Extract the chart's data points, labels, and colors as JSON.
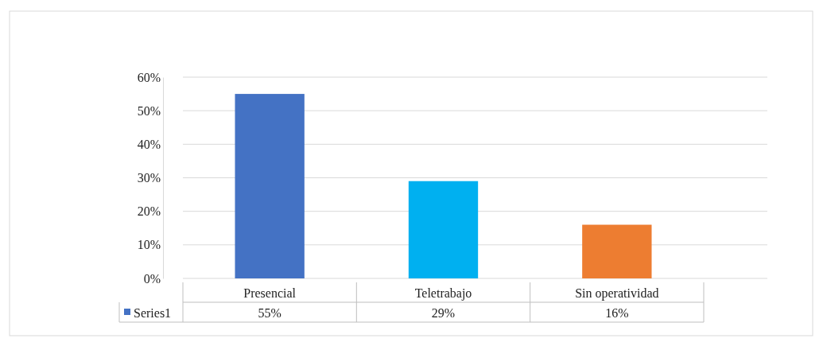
{
  "chart_data": {
    "type": "bar",
    "categories": [
      "Presencial",
      "Teletrabajo",
      "Sin operatividad"
    ],
    "series": [
      {
        "name": "Series1",
        "color": "#4472c4",
        "colors": [
          "#4472c4",
          "#00b0f0",
          "#ed7d31"
        ],
        "values": [
          55,
          29,
          16
        ],
        "value_labels": [
          "55%",
          "29%",
          "16%"
        ]
      }
    ],
    "ylim": [
      0,
      60
    ],
    "yticks": [
      {
        "value": 0,
        "label": "0%"
      },
      {
        "value": 10,
        "label": "10%"
      },
      {
        "value": 20,
        "label": "20%"
      },
      {
        "value": 30,
        "label": "30%"
      },
      {
        "value": 40,
        "label": "40%"
      },
      {
        "value": 50,
        "label": "50%"
      },
      {
        "value": 60,
        "label": "60%"
      }
    ],
    "grid": "y",
    "legend": "bottom"
  }
}
